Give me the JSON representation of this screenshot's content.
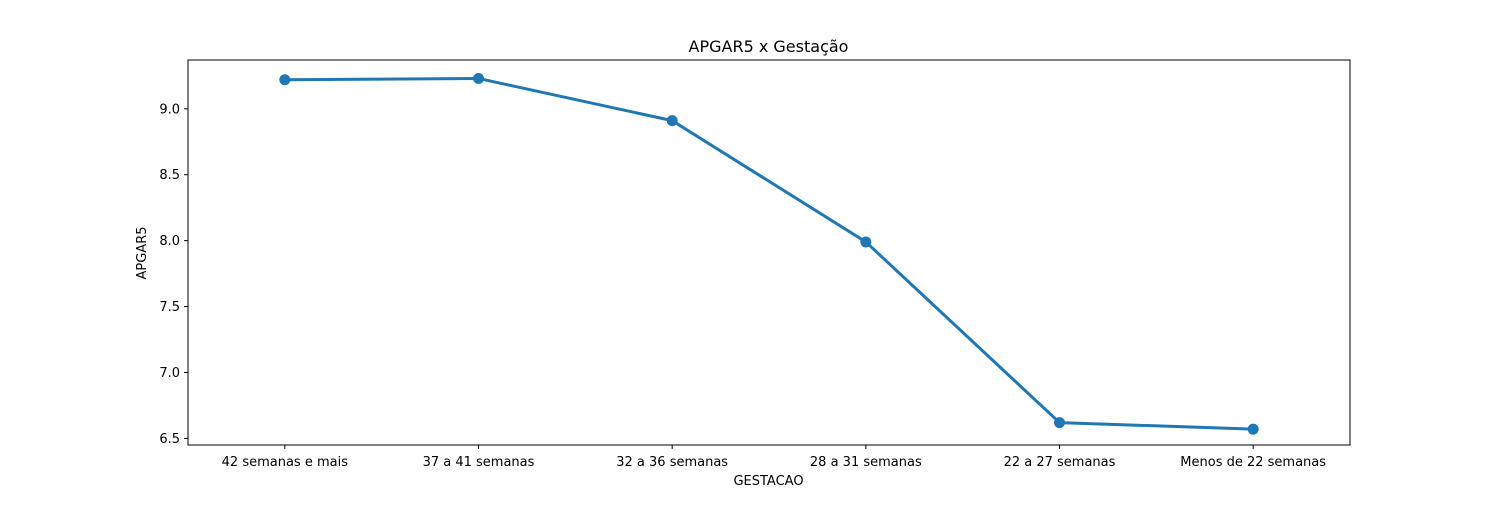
{
  "chart_data": {
    "type": "line",
    "title": "APGAR5 x Gestação",
    "xlabel": "GESTACAO",
    "ylabel": "APGAR5",
    "categories": [
      "42 semanas e mais",
      "37 a 41 semanas",
      "32 a 36 semanas",
      "28 a 31 semanas",
      "22 a 27 semanas",
      "Menos de 22 semanas"
    ],
    "series": [
      {
        "values": [
          9.22,
          9.23,
          8.91,
          7.99,
          6.62,
          6.57
        ]
      }
    ],
    "ylim": [
      6.45,
      9.37
    ],
    "yticks": [
      "6.5",
      "7.0",
      "7.5",
      "8.0",
      "8.5",
      "9.0"
    ],
    "grid": false,
    "legend": "none",
    "colors": {
      "line": "#1f77b4"
    }
  }
}
